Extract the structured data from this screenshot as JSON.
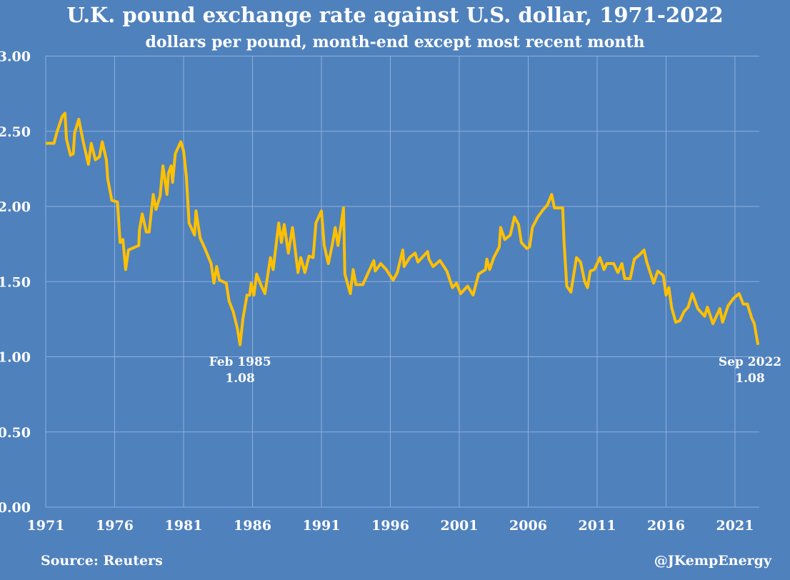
{
  "chart_data": {
    "type": "line",
    "title": "U.K. pound exchange rate against U.S. dollar, 1971-2022",
    "subtitle": "dollars per pound, month-end except most recent month",
    "xlabel": "",
    "ylabel": "",
    "xlim": [
      1971,
      2022.75
    ],
    "ylim": [
      0,
      3
    ],
    "grid": true,
    "line_color": "#ffc000",
    "background_color": "#4f81bd",
    "x_ticks": [
      "1971",
      "1976",
      "1981",
      "1986",
      "1991",
      "1996",
      "2001",
      "2006",
      "2011",
      "2016",
      "2021"
    ],
    "y_ticks": [
      "0.00",
      "0.50",
      "1.00",
      "1.50",
      "2.00",
      "2.50",
      "3.00"
    ],
    "annotations": [
      {
        "label": "Feb 1985",
        "value": "1.08",
        "x": 1985.1,
        "y": 1.08
      },
      {
        "label": "Sep 2022",
        "value": "1.08",
        "x": 2022.67,
        "y": 1.08
      }
    ],
    "series": [
      {
        "points": [
          [
            1971.0,
            2.42
          ],
          [
            1971.6,
            2.42
          ],
          [
            1971.8,
            2.49
          ],
          [
            1972.2,
            2.6
          ],
          [
            1972.4,
            2.62
          ],
          [
            1972.5,
            2.45
          ],
          [
            1972.8,
            2.34
          ],
          [
            1973.0,
            2.35
          ],
          [
            1973.1,
            2.49
          ],
          [
            1973.4,
            2.58
          ],
          [
            1973.7,
            2.44
          ],
          [
            1974.1,
            2.28
          ],
          [
            1974.3,
            2.42
          ],
          [
            1974.6,
            2.31
          ],
          [
            1974.9,
            2.33
          ],
          [
            1975.1,
            2.43
          ],
          [
            1975.4,
            2.31
          ],
          [
            1975.5,
            2.18
          ],
          [
            1975.8,
            2.04
          ],
          [
            1976.2,
            2.03
          ],
          [
            1976.4,
            1.76
          ],
          [
            1976.6,
            1.78
          ],
          [
            1976.8,
            1.58
          ],
          [
            1977.0,
            1.71
          ],
          [
            1977.5,
            1.73
          ],
          [
            1977.75,
            1.74
          ],
          [
            1977.8,
            1.84
          ],
          [
            1978.0,
            1.95
          ],
          [
            1978.3,
            1.83
          ],
          [
            1978.5,
            1.83
          ],
          [
            1978.8,
            2.08
          ],
          [
            1979.0,
            1.98
          ],
          [
            1979.3,
            2.07
          ],
          [
            1979.5,
            2.27
          ],
          [
            1979.8,
            2.08
          ],
          [
            1979.9,
            2.22
          ],
          [
            1980.1,
            2.27
          ],
          [
            1980.2,
            2.16
          ],
          [
            1980.4,
            2.35
          ],
          [
            1980.8,
            2.43
          ],
          [
            1981.0,
            2.37
          ],
          [
            1981.2,
            2.2
          ],
          [
            1981.4,
            1.89
          ],
          [
            1981.8,
            1.81
          ],
          [
            1981.9,
            1.97
          ],
          [
            1982.2,
            1.79
          ],
          [
            1982.5,
            1.73
          ],
          [
            1983.0,
            1.62
          ],
          [
            1983.2,
            1.49
          ],
          [
            1983.4,
            1.6
          ],
          [
            1983.6,
            1.51
          ],
          [
            1984.1,
            1.49
          ],
          [
            1984.3,
            1.37
          ],
          [
            1984.6,
            1.3
          ],
          [
            1984.9,
            1.19
          ],
          [
            1985.1,
            1.08
          ],
          [
            1985.3,
            1.25
          ],
          [
            1985.6,
            1.41
          ],
          [
            1985.8,
            1.41
          ],
          [
            1985.9,
            1.49
          ],
          [
            1986.1,
            1.41
          ],
          [
            1986.3,
            1.55
          ],
          [
            1986.6,
            1.48
          ],
          [
            1986.9,
            1.42
          ],
          [
            1987.3,
            1.66
          ],
          [
            1987.5,
            1.58
          ],
          [
            1987.9,
            1.89
          ],
          [
            1988.1,
            1.76
          ],
          [
            1988.3,
            1.88
          ],
          [
            1988.6,
            1.69
          ],
          [
            1988.9,
            1.86
          ],
          [
            1989.3,
            1.56
          ],
          [
            1989.5,
            1.66
          ],
          [
            1989.8,
            1.56
          ],
          [
            1990.1,
            1.67
          ],
          [
            1990.4,
            1.66
          ],
          [
            1990.6,
            1.89
          ],
          [
            1991.0,
            1.97
          ],
          [
            1991.2,
            1.74
          ],
          [
            1991.5,
            1.62
          ],
          [
            1991.8,
            1.75
          ],
          [
            1992.0,
            1.86
          ],
          [
            1992.2,
            1.74
          ],
          [
            1992.6,
            1.99
          ],
          [
            1992.7,
            1.55
          ],
          [
            1993.1,
            1.42
          ],
          [
            1993.3,
            1.58
          ],
          [
            1993.5,
            1.48
          ],
          [
            1994.0,
            1.48
          ],
          [
            1994.4,
            1.56
          ],
          [
            1994.8,
            1.64
          ],
          [
            1994.9,
            1.57
          ],
          [
            1995.3,
            1.62
          ],
          [
            1995.7,
            1.58
          ],
          [
            1996.2,
            1.51
          ],
          [
            1996.5,
            1.56
          ],
          [
            1996.9,
            1.71
          ],
          [
            1997.0,
            1.6
          ],
          [
            1997.4,
            1.66
          ],
          [
            1997.8,
            1.69
          ],
          [
            1998.0,
            1.63
          ],
          [
            1998.7,
            1.7
          ],
          [
            1998.8,
            1.65
          ],
          [
            1999.1,
            1.6
          ],
          [
            1999.6,
            1.64
          ],
          [
            2000.1,
            1.57
          ],
          [
            2000.5,
            1.46
          ],
          [
            2000.8,
            1.49
          ],
          [
            2001.1,
            1.42
          ],
          [
            2001.6,
            1.47
          ],
          [
            2002.0,
            1.41
          ],
          [
            2002.4,
            1.55
          ],
          [
            2002.9,
            1.58
          ],
          [
            2003.0,
            1.65
          ],
          [
            2003.2,
            1.58
          ],
          [
            2003.5,
            1.66
          ],
          [
            2003.9,
            1.73
          ],
          [
            2004.0,
            1.86
          ],
          [
            2004.3,
            1.78
          ],
          [
            2004.7,
            1.81
          ],
          [
            2005.0,
            1.93
          ],
          [
            2005.3,
            1.88
          ],
          [
            2005.5,
            1.76
          ],
          [
            2005.9,
            1.72
          ],
          [
            2006.1,
            1.73
          ],
          [
            2006.3,
            1.86
          ],
          [
            2006.7,
            1.93
          ],
          [
            2007.1,
            1.98
          ],
          [
            2007.4,
            2.01
          ],
          [
            2007.7,
            2.08
          ],
          [
            2007.9,
            1.99
          ],
          [
            2008.5,
            1.99
          ],
          [
            2008.6,
            1.76
          ],
          [
            2008.8,
            1.47
          ],
          [
            2009.1,
            1.43
          ],
          [
            2009.5,
            1.66
          ],
          [
            2009.8,
            1.63
          ],
          [
            2010.1,
            1.5
          ],
          [
            2010.3,
            1.46
          ],
          [
            2010.5,
            1.57
          ],
          [
            2010.8,
            1.58
          ],
          [
            2011.2,
            1.66
          ],
          [
            2011.5,
            1.58
          ],
          [
            2011.7,
            1.62
          ],
          [
            2012.2,
            1.62
          ],
          [
            2012.5,
            1.56
          ],
          [
            2012.8,
            1.62
          ],
          [
            2013.0,
            1.52
          ],
          [
            2013.4,
            1.52
          ],
          [
            2013.7,
            1.65
          ],
          [
            2014.1,
            1.68
          ],
          [
            2014.4,
            1.71
          ],
          [
            2014.6,
            1.63
          ],
          [
            2015.1,
            1.49
          ],
          [
            2015.4,
            1.57
          ],
          [
            2015.8,
            1.54
          ],
          [
            2016.0,
            1.41
          ],
          [
            2016.2,
            1.46
          ],
          [
            2016.4,
            1.33
          ],
          [
            2016.7,
            1.23
          ],
          [
            2017.0,
            1.24
          ],
          [
            2017.3,
            1.3
          ],
          [
            2017.6,
            1.33
          ],
          [
            2017.9,
            1.42
          ],
          [
            2018.3,
            1.32
          ],
          [
            2018.8,
            1.27
          ],
          [
            2019.0,
            1.33
          ],
          [
            2019.4,
            1.22
          ],
          [
            2019.9,
            1.32
          ],
          [
            2020.1,
            1.23
          ],
          [
            2020.5,
            1.34
          ],
          [
            2020.9,
            1.39
          ],
          [
            2021.3,
            1.42
          ],
          [
            2021.6,
            1.35
          ],
          [
            2021.9,
            1.35
          ],
          [
            2022.2,
            1.26
          ],
          [
            2022.4,
            1.22
          ],
          [
            2022.67,
            1.08
          ]
        ]
      }
    ]
  },
  "footer": {
    "source": "Source: Reuters",
    "handle": "@JKempEnergy"
  }
}
